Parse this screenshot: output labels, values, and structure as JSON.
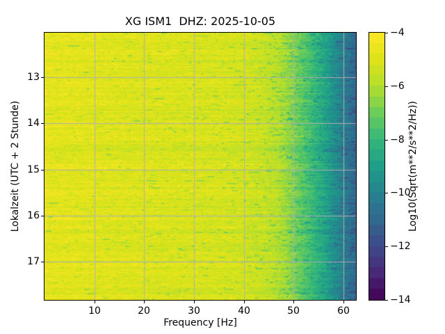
{
  "figure": {
    "background": "#ffffff",
    "title": "XG ISM1  DHZ: 2025-10-05"
  },
  "chart_data": {
    "type": "heatmap",
    "subtype": "spectrogram",
    "title": "XG ISM1  DHZ: 2025-10-05",
    "xlabel": "Frequency [Hz]",
    "ylabel": "Lokalzeit (UTC + 2 Stunde)",
    "x_range_hz": [
      0,
      62.5
    ],
    "x_ticks": [
      10,
      20,
      30,
      40,
      50,
      60
    ],
    "y_range_hours": [
      12.03,
      17.83
    ],
    "y_ticks": [
      13,
      14,
      15,
      16,
      17
    ],
    "grid": true,
    "grid_color": "#b0b0b0",
    "spine_color": "#000000",
    "colormap": "viridis",
    "colormap_stops": [
      "#440154",
      "#482878",
      "#3e4a89",
      "#31688e",
      "#26828e",
      "#1f9e89",
      "#35b779",
      "#6dcd59",
      "#b4de2c",
      "#dde318",
      "#fde725"
    ],
    "colorbar": {
      "label": "Log10(Sqrt(m**2/s**2/Hz))",
      "ticks": [
        -4,
        -6,
        -8,
        -10,
        -12,
        -14
      ],
      "vmin": -14,
      "vmax": -4,
      "quantize_step": 0.4
    },
    "freq_profile": {
      "comment": "mean Log10(Sqrt(m**2/s**2/Hz)) level versus frequency, read from the viridis shading",
      "freq_hz": [
        0,
        5,
        15,
        25,
        35,
        40,
        44,
        47,
        50,
        53,
        56,
        58,
        60,
        62.5
      ],
      "mean_level": [
        -4.7,
        -4.8,
        -4.9,
        -5.0,
        -5.1,
        -5.2,
        -5.5,
        -5.9,
        -6.7,
        -7.6,
        -8.6,
        -9.4,
        -10.1,
        -11.0
      ]
    },
    "noise": {
      "seed": 20251005,
      "row_amp": 0.55,
      "pixel_amp": 0.6,
      "speckle_base_prob": 0.03,
      "speckle_freq_prob": 0.09,
      "speckle_amp": 0.9
    },
    "events": [
      {
        "time_hours": 14.54,
        "level_offset": -0.3,
        "half_width_hours": 0.05
      },
      {
        "time_hours": 17.63,
        "level_offset": -0.35,
        "half_width_hours": 0.07
      }
    ]
  }
}
